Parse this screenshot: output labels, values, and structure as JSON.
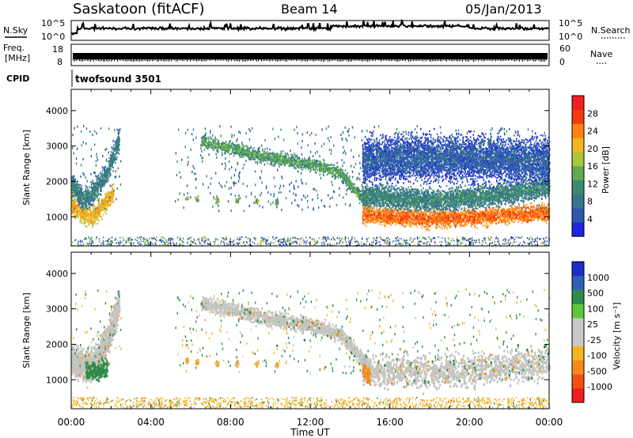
{
  "header": {
    "station": "Saskatoon (fitACF)",
    "beam": "Beam 14",
    "date": "05/Jan/2013"
  },
  "top_panels": {
    "nsky_label": "N.Sky",
    "nsky_ticks": [
      "10^5",
      "10^0"
    ],
    "nsearch_label": "N.Search",
    "nsearch_ticks": [
      "10^5",
      "10^0"
    ],
    "freq_label_1": "Freq.",
    "freq_label_2": "[MHz]",
    "freq_ticks": [
      "18",
      "8"
    ],
    "nave_label": "Nave",
    "nave_ticks": [
      "60",
      "0"
    ],
    "cpid_label": "CPID",
    "cpid_value": "twofsound 3501"
  },
  "colors": {
    "power_scale": [
      "#1f24e0",
      "#2d58b0",
      "#36768c",
      "#3c8a6e",
      "#62a852",
      "#aac63a",
      "#f2b61e",
      "#ff8212",
      "#f63a10",
      "#f01e1e"
    ],
    "velocity_scale": [
      "#1c2ec8",
      "#2c62b4",
      "#2e8c4a",
      "#5cc838",
      "#c8c8c8",
      "#c8c8c8",
      "#f6b420",
      "#f58a1a",
      "#f05012",
      "#ee1e1e"
    ],
    "velocity_gray": "#c4c4c0"
  },
  "chart_data": [
    {
      "type": "heatmap",
      "panel": "power",
      "ylabel": "Slant Range [km]",
      "yticks": [
        "1000",
        "2000",
        "3000",
        "4000"
      ],
      "ylim": [
        180,
        4600
      ],
      "xlim": [
        0,
        24
      ],
      "colorbar_label": "Power [dB]",
      "colorbar_ticks": [
        "4",
        "8",
        "12",
        "16",
        "20",
        "24",
        "28"
      ],
      "colorbar_range": [
        0,
        32
      ],
      "regions": [
        {
          "t": [
            0.0,
            0.5,
            1.0,
            1.5,
            2.1
          ],
          "y": [
            1350,
            1150,
            1000,
            1300,
            1700
          ],
          "w": 400,
          "p": 22
        },
        {
          "t": [
            0.0,
            0.6,
            1.2,
            1.8,
            2.4
          ],
          "y": [
            1900,
            1500,
            1800,
            2300,
            3200
          ],
          "w": 450,
          "p": 10
        },
        {
          "t": [
            6.5,
            8.0,
            9.5,
            11.0,
            12.5,
            13.5,
            14.5,
            15.0
          ],
          "y": [
            3150,
            2950,
            2750,
            2600,
            2450,
            2250,
            1600,
            1200
          ],
          "w": 250,
          "p": 14
        },
        {
          "t": [
            14.6,
            16.0,
            18.0,
            20.0,
            22.0,
            24.0
          ],
          "y": [
            1080,
            1020,
            960,
            990,
            1080,
            1150
          ],
          "w": 350,
          "p": 26
        },
        {
          "t": [
            14.6,
            16.0,
            18.0,
            20.0,
            22.0,
            24.0
          ],
          "y": [
            1650,
            1550,
            1500,
            1550,
            1700,
            1900
          ],
          "w": 450,
          "p": 11
        },
        {
          "t": [
            14.6,
            17.0,
            20.0,
            24.0
          ],
          "y": [
            2600,
            2700,
            2700,
            2600
          ],
          "w": 900,
          "p": 6
        }
      ]
    },
    {
      "type": "heatmap",
      "panel": "velocity",
      "ylabel": "Slant Range [km]",
      "yticks": [
        "1000",
        "2000",
        "3000",
        "4000"
      ],
      "ylim": [
        180,
        4600
      ],
      "xlim": [
        0,
        24
      ],
      "xlabel": "Time UT",
      "xticks": [
        "00:00",
        "04:00",
        "08:00",
        "12:00",
        "16:00",
        "20:00",
        "00:00"
      ],
      "colorbar_label": "Velocity [m s⁻¹]",
      "colorbar_ticks": [
        "1000",
        "500",
        "100",
        "25",
        "-25",
        "-100",
        "-500",
        "-1000"
      ],
      "regions": [
        {
          "t": [
            0.0,
            0.6,
            1.2,
            1.8,
            2.4
          ],
          "y": [
            1600,
            1400,
            1500,
            2200,
            3200
          ],
          "w": 650,
          "v": 0
        },
        {
          "t": [
            0.7,
            1.2,
            1.8
          ],
          "y": [
            1300,
            1250,
            1400
          ],
          "w": 350,
          "v": 150
        },
        {
          "t": [
            6.5,
            8.0,
            9.5,
            11.0,
            12.5,
            13.5,
            14.5,
            15.0
          ],
          "y": [
            3200,
            3000,
            2800,
            2650,
            2500,
            2300,
            1700,
            1300
          ],
          "w": 300,
          "v": 0
        },
        {
          "t": [
            14.6,
            16.0,
            18.0,
            20.0,
            22.0,
            24.0
          ],
          "y": [
            1300,
            1250,
            1250,
            1300,
            1400,
            1550
          ],
          "w": 650,
          "v": 0
        },
        {
          "t": [
            14.6,
            15.0
          ],
          "y": [
            1300,
            1100
          ],
          "w": 300,
          "v": -200
        }
      ]
    }
  ]
}
